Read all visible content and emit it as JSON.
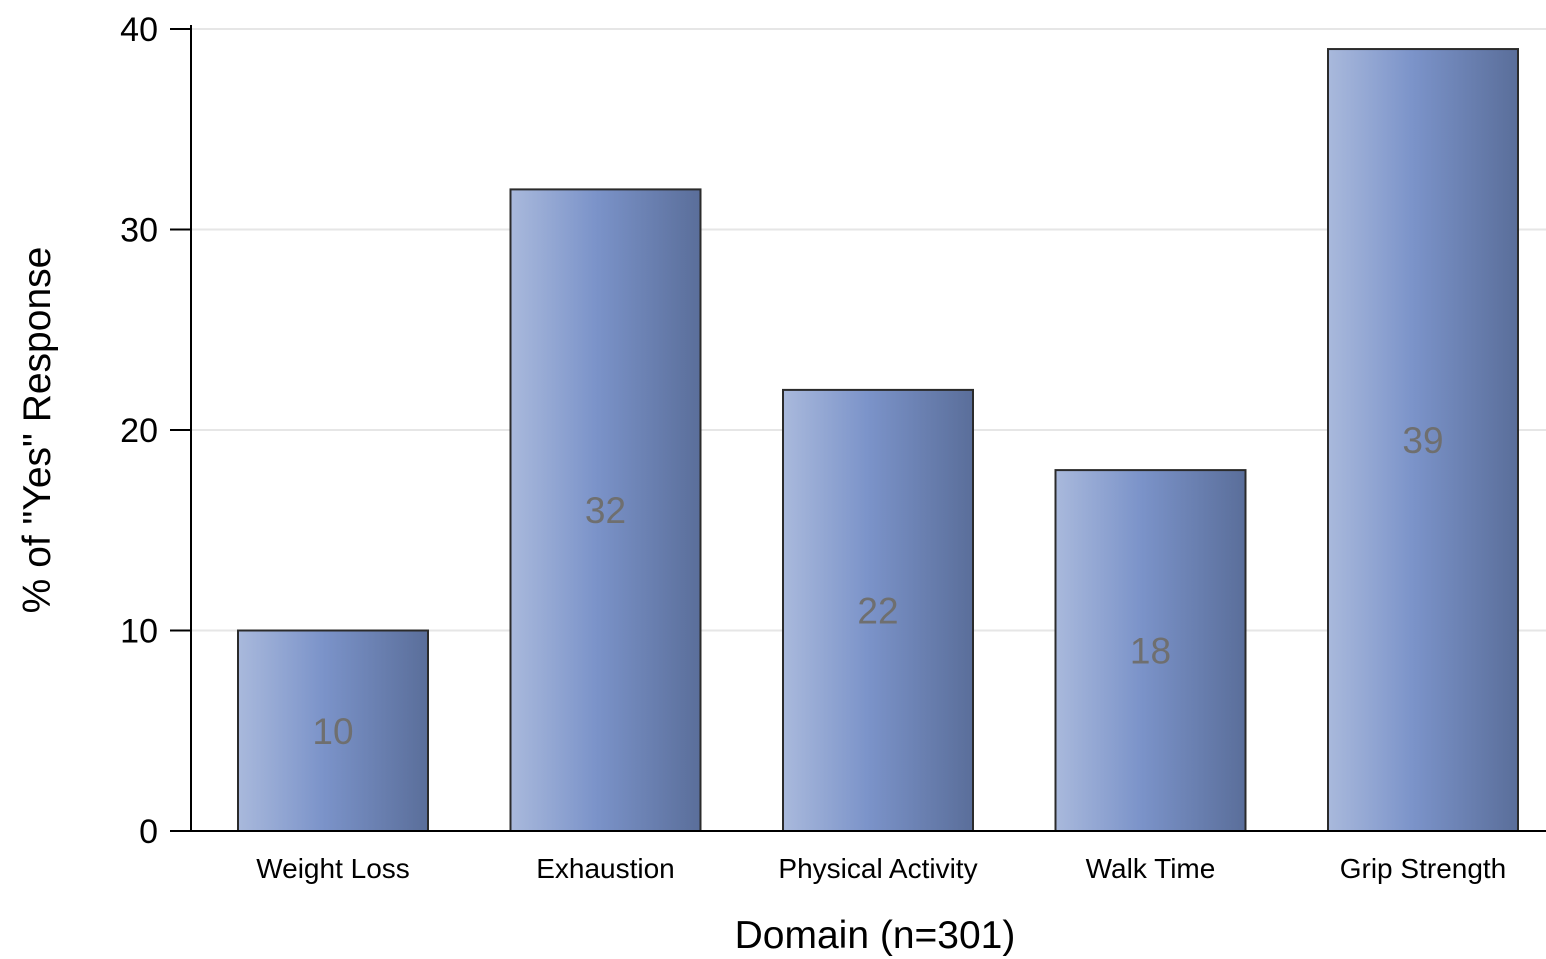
{
  "chart_data": {
    "type": "bar",
    "categories": [
      "Weight Loss",
      "Exhaustion",
      "Physical Activity",
      "Walk Time",
      "Grip Strength"
    ],
    "values": [
      10,
      32,
      22,
      18,
      39
    ],
    "data_labels": [
      "10",
      "32",
      "22",
      "18",
      "39"
    ],
    "xlabel": "Domain (n=301)",
    "ylabel": "% of \"Yes\" Response",
    "ylim": [
      0,
      40
    ],
    "yticks": [
      0,
      10,
      20,
      30,
      40
    ],
    "grid": true,
    "legend": "none",
    "colors": {
      "bar_light": "#a9b9dc",
      "bar_mid": "#7b93c9",
      "bar_dark": "#5a6e9a",
      "bar_edge": "#2b2b2b",
      "gridline": "#e6e6e6",
      "data_label": "#6f6f6f"
    }
  }
}
